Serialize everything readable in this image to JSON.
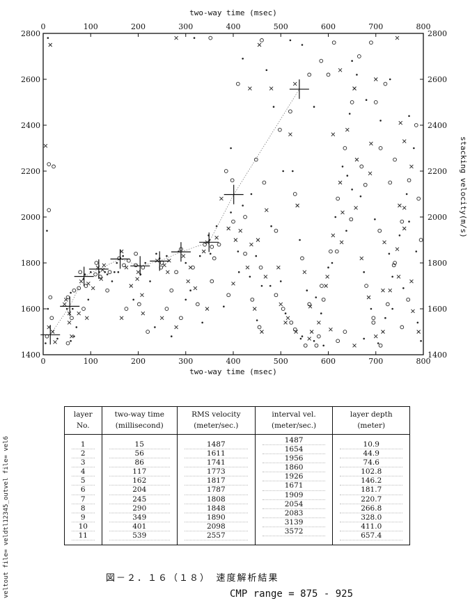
{
  "chart_data": {
    "type": "scatter",
    "title": "",
    "xlabel_top": "two-way time (msec)",
    "xlabel_bottom": "two-way time (msec)",
    "ylabel_right": "stacking velocity(m/s)",
    "xlim": [
      0,
      800
    ],
    "ylim": [
      1400,
      2800
    ],
    "xticks": [
      0,
      100,
      200,
      300,
      400,
      500,
      600,
      700,
      800
    ],
    "yticks": [
      1400,
      1600,
      1800,
      2000,
      2200,
      2400,
      2600,
      2800
    ],
    "picks": {
      "time": [
        15,
        56,
        86,
        117,
        162,
        204,
        245,
        290,
        349,
        401,
        539
      ],
      "velocity": [
        1487,
        1611,
        1741,
        1773,
        1817,
        1787,
        1808,
        1848,
        1890,
        2098,
        2557
      ]
    },
    "scatter_points": [
      [
        8,
        1480
      ],
      [
        12,
        1520
      ],
      [
        5,
        1450
      ],
      [
        18,
        1560
      ],
      [
        20,
        1500
      ],
      [
        10,
        1600
      ],
      [
        15,
        1650
      ],
      [
        25,
        1455
      ],
      [
        30,
        1470
      ],
      [
        12,
        2230
      ],
      [
        15,
        2750
      ],
      [
        10,
        2780
      ],
      [
        22,
        2220
      ],
      [
        5,
        2310
      ],
      [
        8,
        1940
      ],
      [
        12,
        2030
      ],
      [
        45,
        1620
      ],
      [
        50,
        1600
      ],
      [
        52,
        1650
      ],
      [
        55,
        1580
      ],
      [
        58,
        1670
      ],
      [
        60,
        1560
      ],
      [
        48,
        1640
      ],
      [
        62,
        1600
      ],
      [
        65,
        1680
      ],
      [
        55,
        1540
      ],
      [
        58,
        1460
      ],
      [
        52,
        1450
      ],
      [
        60,
        1480
      ],
      [
        70,
        1520
      ],
      [
        75,
        1690
      ],
      [
        80,
        1720
      ],
      [
        85,
        1730
      ],
      [
        90,
        1700
      ],
      [
        95,
        1710
      ],
      [
        88,
        1750
      ],
      [
        78,
        1760
      ],
      [
        92,
        1560
      ],
      [
        100,
        1760
      ],
      [
        110,
        1750
      ],
      [
        115,
        1780
      ],
      [
        118,
        1760
      ],
      [
        120,
        1740
      ],
      [
        125,
        1770
      ],
      [
        130,
        1760
      ],
      [
        112,
        1800
      ],
      [
        122,
        1730
      ],
      [
        135,
        1750
      ],
      [
        140,
        1760
      ],
      [
        128,
        1790
      ],
      [
        155,
        1800
      ],
      [
        160,
        1820
      ],
      [
        165,
        1850
      ],
      [
        168,
        1830
      ],
      [
        170,
        1790
      ],
      [
        175,
        1780
      ],
      [
        158,
        1760
      ],
      [
        180,
        1810
      ],
      [
        185,
        1700
      ],
      [
        150,
        1760
      ],
      [
        195,
        1790
      ],
      [
        200,
        1760
      ],
      [
        205,
        1750
      ],
      [
        210,
        1780
      ],
      [
        198,
        1730
      ],
      [
        215,
        1800
      ],
      [
        202,
        1620
      ],
      [
        208,
        1660
      ],
      [
        225,
        1720
      ],
      [
        195,
        1840
      ],
      [
        240,
        1810
      ],
      [
        245,
        1820
      ],
      [
        250,
        1800
      ],
      [
        255,
        1790
      ],
      [
        260,
        1830
      ],
      [
        248,
        1780
      ],
      [
        265,
        1810
      ],
      [
        238,
        1840
      ],
      [
        270,
        1680
      ],
      [
        262,
        1760
      ],
      [
        285,
        1850
      ],
      [
        290,
        1860
      ],
      [
        295,
        1830
      ],
      [
        300,
        1800
      ],
      [
        280,
        1760
      ],
      [
        305,
        1720
      ],
      [
        310,
        1680
      ],
      [
        315,
        1780
      ],
      [
        320,
        1690
      ],
      [
        330,
        1830
      ],
      [
        340,
        1880
      ],
      [
        345,
        1890
      ],
      [
        350,
        1900
      ],
      [
        355,
        1870
      ],
      [
        338,
        1850
      ],
      [
        348,
        1920
      ],
      [
        360,
        1820
      ],
      [
        365,
        1910
      ],
      [
        352,
        1840
      ],
      [
        370,
        1880
      ],
      [
        390,
        1950
      ],
      [
        395,
        2020
      ],
      [
        400,
        1980
      ],
      [
        405,
        1900
      ],
      [
        410,
        1850
      ],
      [
        398,
        2160
      ],
      [
        415,
        1940
      ],
      [
        420,
        2050
      ],
      [
        425,
        2000
      ],
      [
        430,
        1780
      ],
      [
        435,
        1740
      ],
      [
        440,
        1640
      ],
      [
        445,
        1600
      ],
      [
        450,
        1550
      ],
      [
        455,
        1520
      ],
      [
        460,
        1500
      ],
      [
        438,
        2100
      ],
      [
        448,
        2250
      ],
      [
        452,
        1900
      ],
      [
        460,
        1700
      ],
      [
        465,
        2150
      ],
      [
        470,
        2030
      ],
      [
        480,
        1960
      ],
      [
        490,
        1940
      ],
      [
        495,
        1780
      ],
      [
        500,
        1720
      ],
      [
        505,
        1600
      ],
      [
        510,
        1540
      ],
      [
        485,
        2480
      ],
      [
        498,
        2380
      ],
      [
        520,
        2360
      ],
      [
        525,
        2200
      ],
      [
        530,
        2100
      ],
      [
        535,
        2050
      ],
      [
        540,
        1900
      ],
      [
        545,
        1820
      ],
      [
        550,
        1760
      ],
      [
        555,
        1680
      ],
      [
        560,
        1620
      ],
      [
        565,
        1500
      ],
      [
        570,
        1460
      ],
      [
        575,
        1440
      ],
      [
        580,
        1540
      ],
      [
        585,
        1580
      ],
      [
        590,
        1640
      ],
      [
        595,
        1700
      ],
      [
        600,
        1780
      ],
      [
        605,
        1850
      ],
      [
        610,
        1920
      ],
      [
        615,
        2000
      ],
      [
        620,
        2080
      ],
      [
        625,
        2150
      ],
      [
        630,
        2220
      ],
      [
        635,
        2300
      ],
      [
        640,
        2380
      ],
      [
        645,
        2450
      ],
      [
        650,
        2500
      ],
      [
        655,
        2560
      ],
      [
        660,
        2620
      ],
      [
        665,
        2700
      ],
      [
        670,
        1820
      ],
      [
        675,
        1760
      ],
      [
        680,
        1700
      ],
      [
        685,
        1650
      ],
      [
        690,
        1600
      ],
      [
        695,
        1540
      ],
      [
        700,
        1480
      ],
      [
        705,
        1450
      ],
      [
        710,
        1440
      ],
      [
        715,
        1500
      ],
      [
        720,
        1560
      ],
      [
        725,
        1620
      ],
      [
        730,
        1680
      ],
      [
        735,
        1740
      ],
      [
        740,
        1800
      ],
      [
        745,
        1860
      ],
      [
        750,
        1920
      ],
      [
        755,
        1980
      ],
      [
        760,
        2040
      ],
      [
        765,
        2100
      ],
      [
        770,
        2160
      ],
      [
        775,
        2220
      ],
      [
        780,
        2300
      ],
      [
        785,
        2400
      ],
      [
        790,
        1500
      ],
      [
        795,
        1460
      ],
      [
        720,
        2580
      ],
      [
        700,
        2600
      ],
      [
        680,
        2510
      ],
      [
        710,
        2300
      ],
      [
        660,
        2250
      ],
      [
        640,
        2180
      ],
      [
        620,
        1460
      ],
      [
        605,
        1510
      ],
      [
        590,
        1440
      ],
      [
        580,
        1480
      ],
      [
        560,
        1470
      ],
      [
        545,
        1480
      ],
      [
        530,
        1510
      ],
      [
        515,
        1560
      ],
      [
        505,
        2200
      ],
      [
        520,
        2460
      ],
      [
        530,
        2580
      ],
      [
        545,
        2750
      ],
      [
        560,
        2620
      ],
      [
        480,
        2560
      ],
      [
        470,
        2640
      ],
      [
        460,
        2770
      ],
      [
        455,
        2750
      ],
      [
        420,
        2690
      ],
      [
        410,
        2580
      ],
      [
        435,
        2560
      ],
      [
        395,
        2300
      ],
      [
        385,
        2200
      ],
      [
        375,
        2080
      ],
      [
        365,
        1960
      ],
      [
        355,
        1720
      ],
      [
        345,
        1600
      ],
      [
        335,
        1540
      ],
      [
        325,
        1620
      ],
      [
        310,
        1780
      ],
      [
        300,
        1640
      ],
      [
        290,
        1560
      ],
      [
        280,
        1520
      ],
      [
        270,
        1480
      ],
      [
        260,
        1600
      ],
      [
        250,
        1560
      ],
      [
        235,
        1520
      ],
      [
        220,
        1500
      ],
      [
        210,
        1580
      ],
      [
        190,
        1640
      ],
      [
        175,
        1600
      ],
      [
        165,
        1560
      ],
      [
        145,
        1720
      ],
      [
        135,
        1680
      ],
      [
        105,
        1690
      ],
      [
        95,
        1640
      ],
      [
        85,
        1600
      ],
      [
        75,
        1580
      ],
      [
        65,
        1480
      ],
      [
        352,
        2780
      ],
      [
        280,
        2780
      ],
      [
        318,
        2780
      ],
      [
        585,
        2680
      ],
      [
        625,
        2640
      ],
      [
        650,
        2680
      ],
      [
        690,
        2760
      ],
      [
        745,
        2780
      ],
      [
        730,
        2600
      ],
      [
        700,
        2500
      ],
      [
        752,
        2410
      ],
      [
        770,
        2440
      ],
      [
        740,
        2250
      ],
      [
        760,
        2330
      ],
      [
        520,
        2770
      ],
      [
        612,
        2760
      ],
      [
        655,
        2560
      ],
      [
        570,
        2480
      ],
      [
        600,
        2620
      ],
      [
        610,
        2360
      ],
      [
        380,
        1610
      ],
      [
        390,
        1660
      ],
      [
        400,
        1710
      ],
      [
        412,
        1760
      ],
      [
        425,
        1840
      ],
      [
        438,
        1880
      ],
      [
        448,
        1830
      ],
      [
        458,
        1780
      ],
      [
        468,
        1740
      ],
      [
        478,
        1700
      ],
      [
        490,
        1660
      ],
      [
        500,
        1620
      ],
      [
        510,
        1580
      ],
      [
        522,
        1540
      ],
      [
        532,
        1500
      ],
      [
        542,
        1470
      ],
      [
        552,
        1440
      ],
      [
        562,
        1610
      ],
      [
        574,
        1650
      ],
      [
        586,
        1700
      ],
      [
        598,
        1740
      ],
      [
        608,
        1800
      ],
      [
        618,
        1850
      ],
      [
        628,
        1890
      ],
      [
        638,
        1940
      ],
      [
        648,
        1990
      ],
      [
        658,
        2040
      ],
      [
        668,
        2090
      ],
      [
        678,
        2140
      ],
      [
        688,
        2190
      ],
      [
        698,
        1990
      ],
      [
        708,
        1940
      ],
      [
        718,
        1890
      ],
      [
        728,
        1840
      ],
      [
        738,
        1790
      ],
      [
        748,
        1740
      ],
      [
        758,
        1690
      ],
      [
        768,
        1640
      ],
      [
        778,
        1590
      ],
      [
        788,
        1540
      ],
      [
        635,
        1500
      ],
      [
        655,
        1440
      ],
      [
        675,
        1470
      ],
      [
        695,
        1560
      ],
      [
        715,
        1680
      ],
      [
        735,
        1600
      ],
      [
        755,
        1520
      ],
      [
        775,
        1720
      ],
      [
        785,
        1850
      ],
      [
        795,
        1900
      ],
      [
        630,
        2020
      ],
      [
        650,
        2120
      ],
      [
        670,
        2220
      ],
      [
        690,
        2320
      ],
      [
        710,
        2420
      ],
      [
        730,
        2150
      ],
      [
        750,
        2050
      ],
      [
        770,
        1980
      ],
      [
        790,
        2080
      ],
      [
        760,
        1950
      ]
    ]
  },
  "table": {
    "headers": [
      [
        "layer",
        "No."
      ],
      [
        "two-way time",
        "(millisecond)"
      ],
      [
        "RMS velocity",
        "(meter/sec.)"
      ],
      [
        "interval vel.",
        "(meter/sec.)"
      ],
      [
        "layer depth",
        "(meter)"
      ]
    ],
    "layer_no": [
      "1",
      "2",
      "3",
      "4",
      "5",
      "6",
      "7",
      "8",
      "9",
      "10",
      "11"
    ],
    "two_way_time": [
      "15",
      "56",
      "86",
      "117",
      "162",
      "204",
      "245",
      "290",
      "349",
      "401",
      "539"
    ],
    "rms_velocity": [
      "1487",
      "1611",
      "1741",
      "1773",
      "1817",
      "1787",
      "1808",
      "1848",
      "1890",
      "2098",
      "2557"
    ],
    "interval_vel": [
      "1487",
      "1654",
      "1956",
      "1860",
      "1926",
      "1671",
      "1909",
      "2054",
      "2083",
      "3139",
      "3572"
    ],
    "layer_depth": [
      "10.9",
      "44.9",
      "74.6",
      "102.8",
      "146.2",
      "181.7",
      "220.7",
      "266.8",
      "328.0",
      "411.0",
      "657.4"
    ]
  },
  "side_note": "veltout file= veldtl12345_outvel file= vel6",
  "figure_caption": "図－２．１６（１８）　速度解析結果",
  "cmp_range": "CMP range = 875 - 925"
}
